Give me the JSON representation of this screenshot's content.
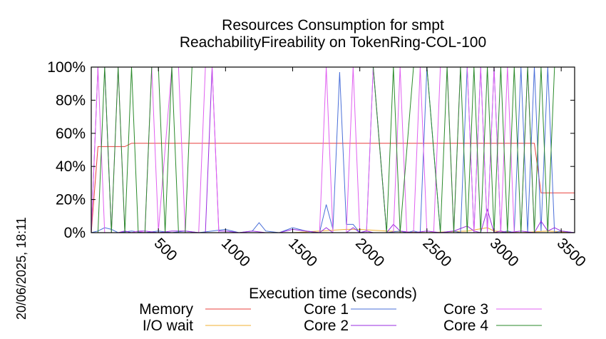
{
  "chart_data": {
    "type": "line",
    "title": "Resources Consumption for smpt",
    "subtitle": "ReachabilityFireability on TokenRing-COL-100",
    "xlabel": "Execution time (seconds)",
    "ylabel": "",
    "timestamp": "20/06/2025, 18:11",
    "xlim": [
      0,
      3600
    ],
    "ylim": [
      0,
      100
    ],
    "x_ticks": [
      500,
      1000,
      1500,
      2000,
      2500,
      3000,
      3500
    ],
    "x_tick_labels": [
      "500",
      "1000",
      "1500",
      "2000",
      "2500",
      "3000",
      "3500"
    ],
    "y_ticks": [
      0,
      20,
      40,
      60,
      80,
      100
    ],
    "y_tick_labels": [
      "0%",
      "20%",
      "40%",
      "60%",
      "80%",
      "100%"
    ],
    "grid": false,
    "legend_position": "bottom",
    "series": [
      {
        "name": "Memory",
        "color": "#e8413e",
        "x": [
          0,
          50,
          100,
          150,
          200,
          250,
          300,
          350,
          400,
          1000,
          2000,
          3000,
          3300,
          3350,
          3400,
          3600
        ],
        "values": [
          0,
          52,
          52,
          52,
          52,
          52,
          54,
          54,
          54,
          54,
          54,
          54,
          54,
          24,
          24,
          24
        ]
      },
      {
        "name": "I/O wait",
        "color": "#f0b030",
        "x": [
          0,
          500,
          1000,
          1500,
          1700,
          1900,
          2000,
          2200,
          2500,
          2800,
          2950,
          3000,
          3200,
          3400,
          3600
        ],
        "values": [
          0,
          0,
          0,
          0,
          1,
          2,
          2,
          1,
          0,
          1,
          3,
          1,
          0,
          1,
          0
        ]
      },
      {
        "name": "Core 1",
        "color": "#4a6fd8",
        "x": [
          0,
          50,
          100,
          150,
          200,
          300,
          400,
          500,
          600,
          700,
          800,
          900,
          1000,
          1100,
          1200,
          1250,
          1300,
          1400,
          1500,
          1600,
          1700,
          1750,
          1800,
          1850,
          1900,
          1950,
          2000,
          2050,
          2100,
          2200,
          2300,
          2350,
          2400,
          2450,
          2500,
          2600,
          2700,
          2750,
          2800,
          2850,
          2900,
          2950,
          3000,
          3050,
          3100,
          3150,
          3200,
          3250,
          3300,
          3350,
          3400,
          3450,
          3500,
          3600
        ],
        "values": [
          0,
          1,
          3,
          2,
          0,
          1,
          0,
          1,
          0,
          1,
          0,
          1,
          2,
          0,
          1,
          6,
          1,
          0,
          3,
          1,
          0,
          17,
          2,
          97,
          5,
          5,
          0,
          1,
          100,
          0,
          1,
          0,
          1,
          0,
          100,
          0,
          1,
          0,
          100,
          0,
          100,
          1,
          100,
          0,
          1,
          0,
          100,
          0,
          100,
          1,
          100,
          0,
          1,
          0
        ]
      },
      {
        "name": "Core 2",
        "color": "#9a2be0",
        "x": [
          0,
          50,
          100,
          150,
          200,
          250,
          300,
          350,
          400,
          500,
          600,
          700,
          800,
          850,
          900,
          950,
          1000,
          1100,
          1200,
          1300,
          1400,
          1500,
          1600,
          1700,
          1750,
          1800,
          1900,
          1950,
          2000,
          2050,
          2100,
          2200,
          2250,
          2300,
          2400,
          2500,
          2600,
          2700,
          2800,
          2850,
          2900,
          2950,
          3000,
          3050,
          3100,
          3200,
          3300,
          3350,
          3400,
          3450,
          3500,
          3600
        ],
        "values": [
          0,
          100,
          100,
          0,
          0,
          1,
          0,
          1,
          1,
          0,
          1,
          1,
          0,
          0,
          100,
          1,
          1,
          0,
          1,
          0,
          0,
          2,
          1,
          0,
          3,
          0,
          0,
          3,
          0,
          1,
          0,
          0,
          5,
          1,
          0,
          1,
          0,
          1,
          4,
          1,
          0,
          14,
          0,
          1,
          0,
          1,
          0,
          7,
          1,
          3,
          1,
          0
        ]
      },
      {
        "name": "Core 3",
        "color": "#e060f0",
        "x": [
          0,
          50,
          100,
          150,
          200,
          250,
          300,
          350,
          400,
          450,
          500,
          600,
          650,
          700,
          800,
          850,
          900,
          950,
          1000,
          1700,
          1750,
          1800,
          1850,
          1900,
          1950,
          2000,
          2050,
          2100,
          2200,
          2250,
          2300,
          2350,
          2400,
          2450,
          2500,
          2550,
          2600,
          2650,
          2700,
          2750,
          2800,
          2850,
          2900,
          2950,
          3000,
          3050,
          3100,
          3150,
          3200,
          3250,
          3300,
          3350,
          3400,
          3450,
          3500
        ],
        "values": [
          0,
          100,
          0,
          0,
          100,
          0,
          0,
          1,
          0,
          100,
          1,
          100,
          100,
          0,
          0,
          100,
          100,
          0,
          0,
          0,
          100,
          0,
          0,
          0,
          100,
          0,
          0,
          100,
          0,
          0,
          100,
          0,
          0,
          100,
          0,
          0,
          100,
          100,
          0,
          100,
          100,
          0,
          100,
          0,
          100,
          0,
          100,
          0,
          0,
          100,
          0,
          0,
          0,
          0,
          0
        ]
      },
      {
        "name": "Core 4",
        "color": "#2a8a2a",
        "x": [
          0,
          50,
          100,
          150,
          200,
          250,
          300,
          350,
          400,
          450,
          500,
          550,
          600,
          650,
          700,
          750,
          800,
          900,
          1000,
          2000,
          2100,
          2200,
          2250,
          2300,
          2400,
          2500,
          2600,
          2650,
          2700,
          2750,
          2800,
          2850,
          2900,
          2950,
          3000,
          3050,
          3100,
          3150,
          3200,
          3250,
          3300,
          3350,
          3400,
          3450,
          3500,
          3600
        ],
        "values": [
          0,
          0,
          100,
          0,
          100,
          0,
          100,
          0,
          0,
          100,
          100,
          0,
          100,
          0,
          0,
          100,
          100,
          100,
          100,
          100,
          100,
          0,
          100,
          0,
          100,
          100,
          0,
          100,
          0,
          100,
          0,
          100,
          0,
          100,
          0,
          100,
          0,
          100,
          0,
          100,
          0,
          100,
          0,
          100,
          100,
          100
        ]
      }
    ]
  }
}
